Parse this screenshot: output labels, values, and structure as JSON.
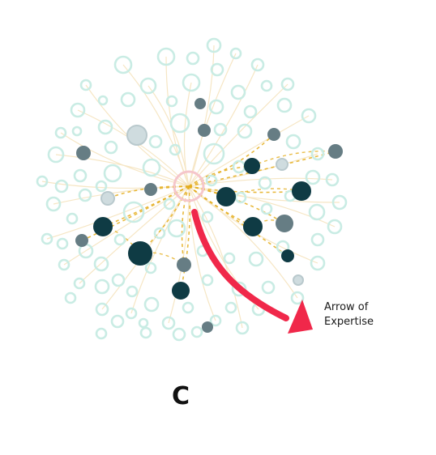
{
  "diagram": {
    "arrow_label_line1": "Arrow of",
    "arrow_label_line2": "Expertise",
    "panel_letter": "C",
    "colors": {
      "ring": "#c9ece4",
      "expert_dark": "#0f3b44",
      "expert_gray": "#667d84",
      "highlight_ring": "#f5c6cb",
      "link": "#e4ad1c",
      "faint_link": "#f6e6c4",
      "arrow": "#f0284a"
    }
  }
}
